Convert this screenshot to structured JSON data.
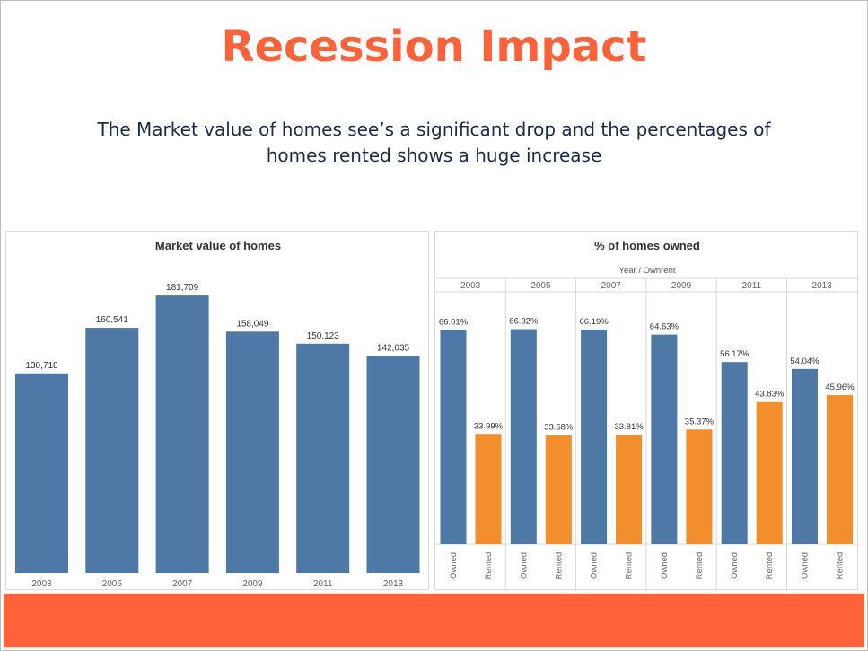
{
  "slide": {
    "title": "Recession Impact",
    "subtitle": "The Market value of homes see’s a significant drop and the percentages of homes rented shows a huge increase"
  },
  "colors": {
    "title": "#ff6138",
    "footer_bar": "#ff6138",
    "owned": "#4e79a7",
    "rented": "#f28e2b",
    "bar": "#4e79a7"
  },
  "chart_data": [
    {
      "type": "bar",
      "title": "Market value of homes",
      "categories": [
        "2003",
        "2005",
        "2007",
        "2009",
        "2011",
        "2013"
      ],
      "values": [
        130718,
        160541,
        181709,
        158049,
        150123,
        142035
      ],
      "labels": [
        "130,718",
        "160,541",
        "181,709",
        "158,049",
        "150,123",
        "142,035"
      ],
      "ylim": [
        0,
        200000
      ],
      "grid": false
    },
    {
      "type": "bar",
      "title": "% of homes owned",
      "header": "Year / Ownrent",
      "groups": [
        "2003",
        "2005",
        "2007",
        "2009",
        "2011",
        "2013"
      ],
      "subcategories": [
        "Owned",
        "Rented"
      ],
      "series": [
        {
          "name": "Owned",
          "values": [
            66.01,
            66.32,
            66.19,
            64.63,
            56.17,
            54.04
          ],
          "labels": [
            "66.01%",
            "66.32%",
            "66.19%",
            "64.63%",
            "56.17%",
            "54.04%"
          ]
        },
        {
          "name": "Rented",
          "values": [
            33.99,
            33.68,
            33.81,
            35.37,
            43.83,
            45.96
          ],
          "labels": [
            "33.99%",
            "33.68%",
            "33.81%",
            "35.37%",
            "43.83%",
            "45.96%"
          ]
        }
      ],
      "ylim": [
        0,
        72
      ],
      "grid": false
    }
  ]
}
